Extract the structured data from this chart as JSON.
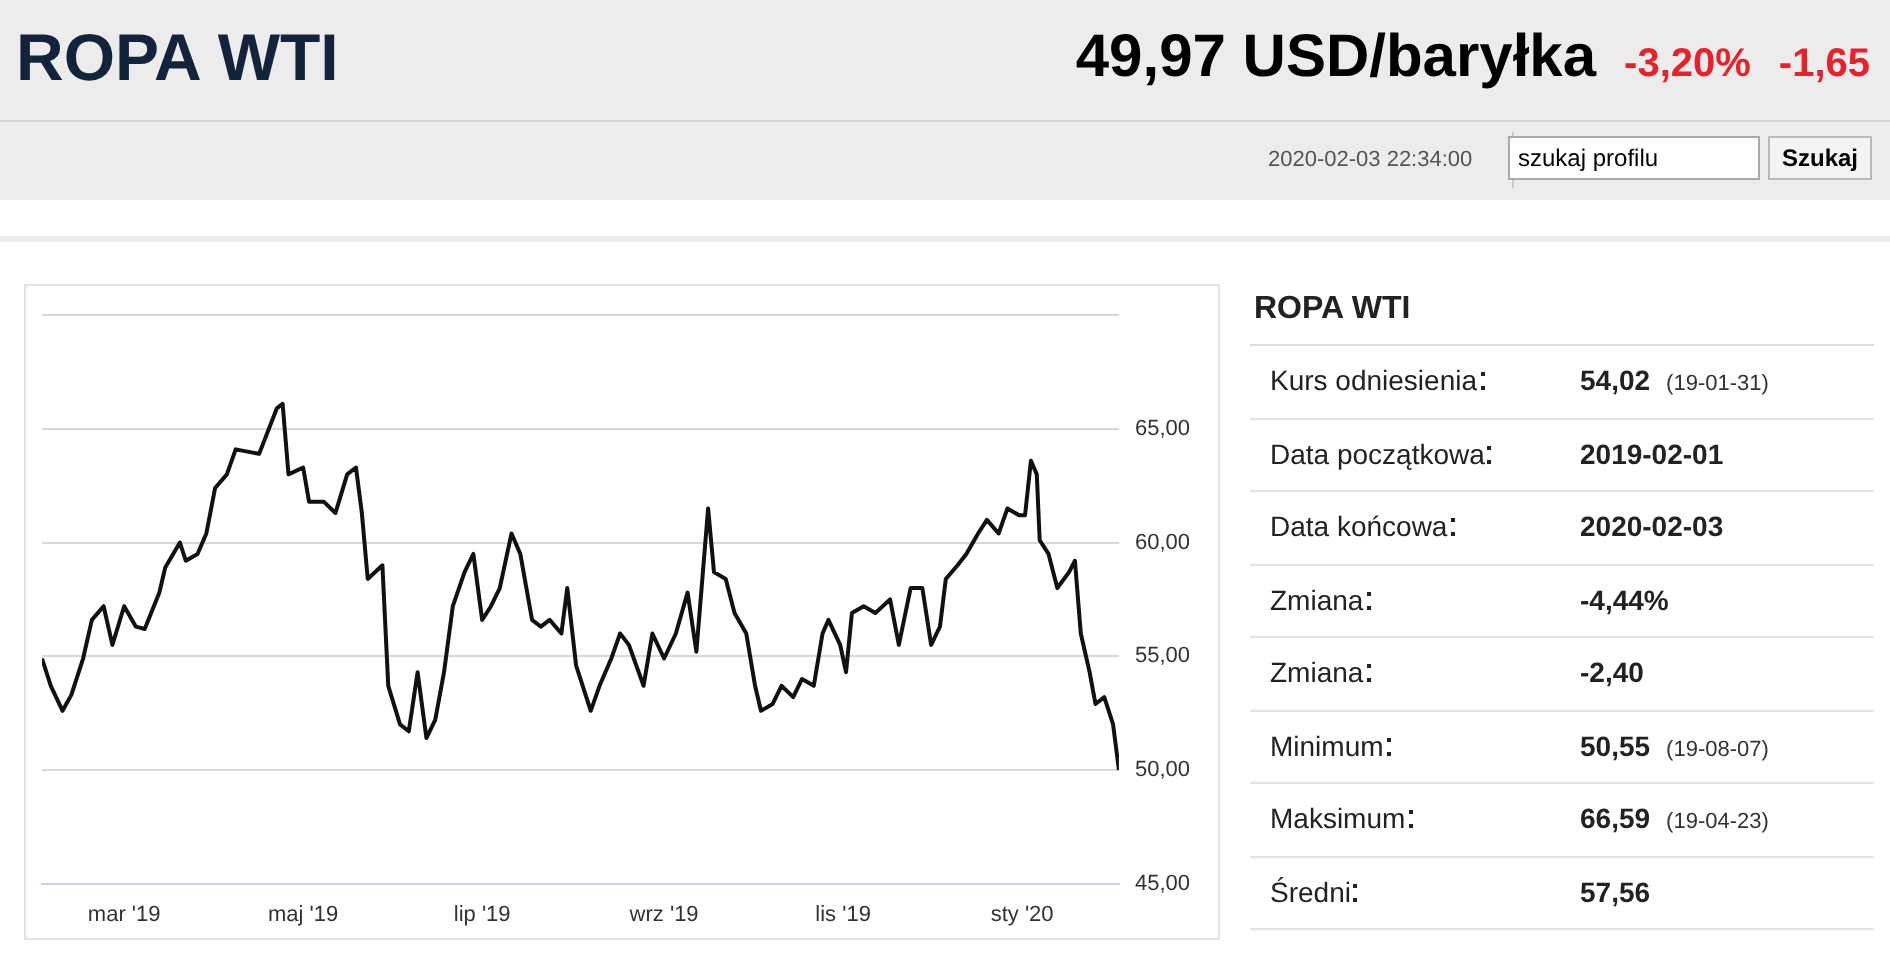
{
  "chart_data": [
    {
      "type": "line",
      "title": "ROPA WTI",
      "subtitle": "49,97 USD/baryłka",
      "annotations": [
        "-3,20%",
        "-1,65",
        "2020-02-03 22:34:00",
        "szukaj profilu",
        "Szukaj"
      ],
      "x": [
        "2019-02-01",
        "2019-02-04",
        "2019-02-08",
        "2019-02-11",
        "2019-02-15",
        "2019-02-18",
        "2019-02-22",
        "2019-02-25",
        "2019-03-01",
        "2019-03-05",
        "2019-03-08",
        "2019-03-13",
        "2019-03-15",
        "2019-03-20",
        "2019-03-22",
        "2019-03-26",
        "2019-03-29",
        "2019-04-01",
        "2019-04-05",
        "2019-04-08",
        "2019-04-12",
        "2019-04-16",
        "2019-04-22",
        "2019-04-24",
        "2019-04-26",
        "2019-05-01",
        "2019-05-03",
        "2019-05-08",
        "2019-05-12",
        "2019-05-16",
        "2019-05-19",
        "2019-05-21",
        "2019-05-23",
        "2019-05-28",
        "2019-05-30",
        "2019-06-03",
        "2019-06-06",
        "2019-06-09",
        "2019-06-12",
        "2019-06-15",
        "2019-06-18",
        "2019-06-21",
        "2019-06-25",
        "2019-06-28",
        "2019-07-01",
        "2019-07-04",
        "2019-07-07",
        "2019-07-11",
        "2019-07-14",
        "2019-07-18",
        "2019-07-21",
        "2019-07-24",
        "2019-07-28",
        "2019-07-30",
        "2019-08-02",
        "2019-08-07",
        "2019-08-10",
        "2019-08-14",
        "2019-08-17",
        "2019-08-20",
        "2019-08-25",
        "2019-08-28",
        "2019-09-01",
        "2019-09-05",
        "2019-09-09",
        "2019-09-12",
        "2019-09-16",
        "2019-09-18",
        "2019-09-22",
        "2019-09-25",
        "2019-09-29",
        "2019-10-02",
        "2019-10-04",
        "2019-10-08",
        "2019-10-11",
        "2019-10-15",
        "2019-10-18",
        "2019-10-22",
        "2019-10-25",
        "2019-10-27",
        "2019-10-31",
        "2019-11-02",
        "2019-11-04",
        "2019-11-08",
        "2019-11-12",
        "2019-11-17",
        "2019-11-20",
        "2019-11-24",
        "2019-11-28",
        "2019-12-01",
        "2019-12-04",
        "2019-12-06",
        "2019-12-10",
        "2019-12-13",
        "2019-12-17",
        "2019-12-20",
        "2019-12-24",
        "2019-12-27",
        "2019-12-31",
        "2020-01-02",
        "2020-01-04",
        "2020-01-06",
        "2020-01-07",
        "2020-01-10",
        "2020-01-13",
        "2020-01-17",
        "2020-01-19",
        "2020-01-21",
        "2020-01-24",
        "2020-01-26",
        "2020-01-29",
        "2020-02-01",
        "2020-02-03"
      ],
      "series": [
        {
          "color": "#111111",
          "values": [
            54.9,
            53.7,
            52.6,
            53.3,
            54.9,
            56.6,
            57.2,
            55.5,
            57.2,
            56.3,
            56.2,
            57.8,
            58.9,
            60.0,
            59.2,
            59.5,
            60.4,
            62.4,
            63.0,
            64.1,
            64.0,
            63.9,
            65.9,
            66.1,
            63.0,
            63.3,
            61.8,
            61.8,
            61.3,
            63.0,
            63.3,
            61.3,
            58.4,
            59.0,
            53.7,
            52.0,
            51.7,
            54.3,
            51.4,
            52.2,
            54.3,
            57.2,
            58.7,
            59.5,
            56.6,
            57.2,
            58.0,
            60.4,
            59.5,
            56.6,
            56.3,
            56.6,
            56.0,
            58.0,
            54.6,
            52.6,
            53.7,
            54.9,
            56.0,
            55.5,
            53.7,
            56.0,
            54.9,
            56.0,
            57.8,
            55.2,
            61.5,
            58.7,
            58.4,
            56.9,
            56.0,
            53.7,
            52.6,
            52.9,
            53.7,
            53.2,
            54.0,
            53.7,
            56.0,
            56.6,
            55.5,
            54.3,
            56.9,
            57.2,
            56.9,
            57.5,
            55.5,
            58.0,
            58.0,
            55.5,
            56.3,
            58.4,
            59.0,
            59.5,
            60.4,
            61.0,
            60.4,
            61.5,
            61.2,
            61.2,
            63.6,
            63.0,
            60.1,
            59.5,
            58.0,
            58.7,
            59.2,
            56.0,
            54.3,
            52.9,
            53.2,
            52.0,
            50.0
          ]
        }
      ],
      "xlim": [
        "2019-02-01",
        "2020-02-03"
      ],
      "xticks": [
        {
          "value": "2019-03-01",
          "label": "mar '19"
        },
        {
          "value": "2019-05-01",
          "label": "maj '19"
        },
        {
          "value": "2019-07-01",
          "label": "lip '19"
        },
        {
          "value": "2019-09-01",
          "label": "wrz '19"
        },
        {
          "value": "2019-11-01",
          "label": "lis '19"
        },
        {
          "value": "2020-01-01",
          "label": "sty '20"
        }
      ],
      "ylim": [
        45,
        70
      ],
      "yticks": [
        {
          "value": 45,
          "label": "45,00"
        },
        {
          "value": 50,
          "label": "50,00"
        },
        {
          "value": 55,
          "label": "55,00"
        },
        {
          "value": 60,
          "label": "60,00"
        },
        {
          "value": 65,
          "label": "65,00"
        },
        {
          "value": 70,
          "label": null
        }
      ],
      "grid": "y",
      "legend": false,
      "marker": "none",
      "line_style": "solid"
    },
    {
      "type": "other",
      "title": "ROPA WTI",
      "categories": [
        "Kurs odniesienia",
        "Data początkowa",
        "Data końcowa",
        "Zmiana",
        "Zmiana",
        "Minimum",
        "Maksimum",
        "Średni"
      ],
      "value_labels": [
        "54,02",
        "2019-02-01",
        "2020-02-03",
        "-4,44%",
        "-2,40",
        "50,55",
        "66,59",
        "57,56"
      ],
      "annotations": [
        {
          "text": "(19-01-31)",
          "x": "Kurs odniesienia"
        },
        {
          "text": "(19-08-07)",
          "x": "Minimum"
        },
        {
          "text": "(19-04-23)",
          "x": "Maksimum"
        }
      ]
    }
  ]
}
